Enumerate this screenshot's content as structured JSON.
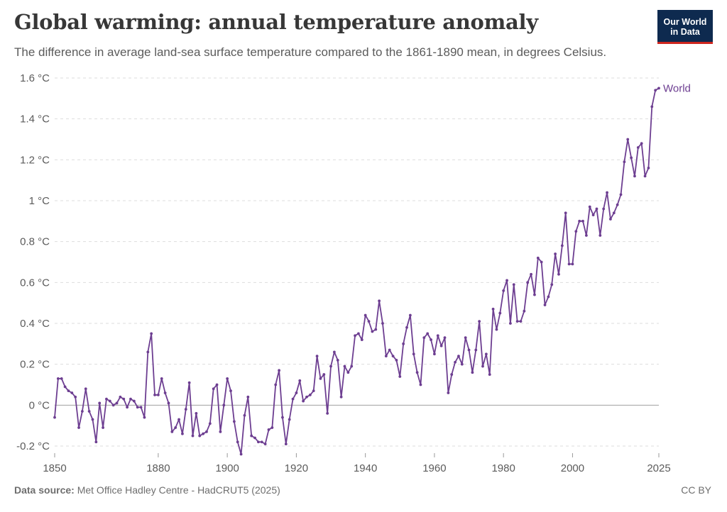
{
  "header": {
    "title": "Global warming: annual temperature anomaly",
    "subtitle": "The difference in average land-sea surface temperature compared to the 1861-1890 mean, in degrees Celsius.",
    "logo_line1": "Our World",
    "logo_line2": "in Data"
  },
  "footer": {
    "source_label": "Data source:",
    "source_text": "Met Office Hadley Centre - HadCRUT5 (2025)",
    "license": "CC BY"
  },
  "colors": {
    "series": "#6d3e91",
    "grid": "#dddddd",
    "zero_line": "#a1a1a1",
    "axis": "#5b5b5b",
    "logo_bg": "#0e2a4f",
    "logo_accent": "#ce261e"
  },
  "chart_data": {
    "type": "line",
    "title": "Global warming: annual temperature anomaly",
    "xlabel": "",
    "ylabel": "",
    "xlim": [
      1850,
      2025
    ],
    "ylim": [
      -0.2,
      1.6
    ],
    "x_ticks": [
      1850,
      1880,
      1900,
      1920,
      1940,
      1960,
      1980,
      2000,
      2025
    ],
    "y_ticks": [
      -0.2,
      0,
      0.2,
      0.4,
      0.6,
      0.8,
      1,
      1.2,
      1.4,
      1.6
    ],
    "y_tick_labels": [
      "-0.2 °C",
      "0 °C",
      "0.2 °C",
      "0.4 °C",
      "0.6 °C",
      "0.8 °C",
      "1 °C",
      "1.2 °C",
      "1.4 °C",
      "1.6 °C"
    ],
    "grid": "horizontal dashed",
    "legend": "end-of-line label",
    "series": [
      {
        "name": "World",
        "x_start": 1850,
        "x_end": 2025,
        "values": [
          -0.06,
          0.13,
          0.13,
          0.09,
          0.07,
          0.06,
          0.04,
          -0.11,
          -0.03,
          0.08,
          -0.03,
          -0.07,
          -0.18,
          0.01,
          -0.11,
          0.03,
          0.02,
          0.0,
          0.01,
          0.04,
          0.03,
          -0.01,
          0.03,
          0.02,
          -0.01,
          -0.01,
          -0.06,
          0.26,
          0.35,
          0.05,
          0.05,
          0.13,
          0.06,
          0.01,
          -0.13,
          -0.11,
          -0.07,
          -0.14,
          -0.02,
          0.11,
          -0.15,
          -0.04,
          -0.15,
          -0.14,
          -0.13,
          -0.09,
          0.08,
          0.1,
          -0.13,
          0.0,
          0.13,
          0.07,
          -0.08,
          -0.18,
          -0.24,
          -0.05,
          0.04,
          -0.15,
          -0.16,
          -0.18,
          -0.18,
          -0.19,
          -0.12,
          -0.11,
          0.1,
          0.17,
          -0.06,
          -0.19,
          -0.07,
          0.03,
          0.06,
          0.12,
          0.02,
          0.04,
          0.05,
          0.07,
          0.24,
          0.13,
          0.15,
          -0.04,
          0.19,
          0.26,
          0.22,
          0.04,
          0.19,
          0.16,
          0.19,
          0.34,
          0.35,
          0.32,
          0.44,
          0.41,
          0.36,
          0.37,
          0.51,
          0.4,
          0.24,
          0.27,
          0.24,
          0.22,
          0.14,
          0.3,
          0.38,
          0.44,
          0.25,
          0.16,
          0.1,
          0.33,
          0.35,
          0.32,
          0.25,
          0.34,
          0.29,
          0.33,
          0.06,
          0.15,
          0.21,
          0.24,
          0.2,
          0.33,
          0.27,
          0.16,
          0.27,
          0.41,
          0.19,
          0.25,
          0.15,
          0.47,
          0.37,
          0.45,
          0.56,
          0.61,
          0.4,
          0.59,
          0.41,
          0.41,
          0.46,
          0.6,
          0.64,
          0.54,
          0.72,
          0.7,
          0.49,
          0.53,
          0.59,
          0.74,
          0.64,
          0.78,
          0.94,
          0.69,
          0.69,
          0.85,
          0.9,
          0.9,
          0.83,
          0.97,
          0.93,
          0.96,
          0.83,
          0.96,
          1.04,
          0.91,
          0.94,
          0.98,
          1.03,
          1.19,
          1.3,
          1.21,
          1.12,
          1.26,
          1.28,
          1.12,
          1.16,
          1.46,
          1.54,
          1.55
        ]
      }
    ]
  }
}
